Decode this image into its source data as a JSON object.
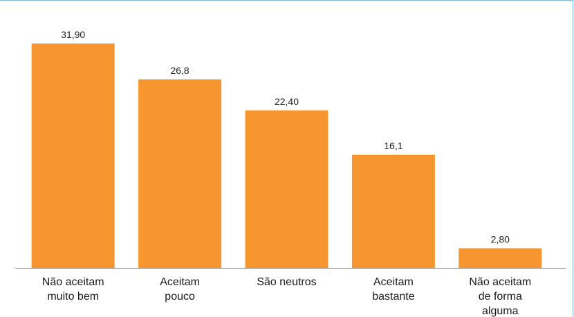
{
  "chart_data": {
    "type": "bar",
    "categories": [
      [
        "Não aceitam",
        "muito bem"
      ],
      [
        "Aceitam",
        "pouco"
      ],
      [
        "São neutros"
      ],
      [
        "Aceitam",
        "bastante"
      ],
      [
        "Não aceitam",
        "de forma",
        "alguma"
      ]
    ],
    "values": [
      31.9,
      26.8,
      22.4,
      16.1,
      2.8
    ],
    "value_labels": [
      "31,90",
      "26,8",
      "22,40",
      "16,1",
      "2,80"
    ],
    "title": "",
    "xlabel": "",
    "ylabel": "",
    "ylim": [
      0,
      31.9
    ],
    "grid": false,
    "bar_color": "#f7962e",
    "axis_color": "#999999"
  }
}
